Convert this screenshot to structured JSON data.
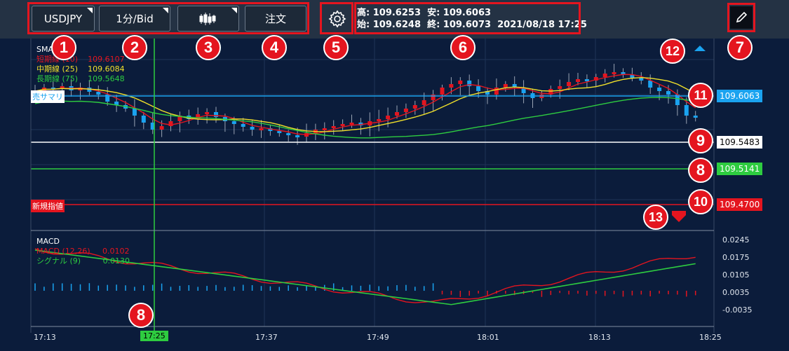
{
  "toolbar": {
    "symbol": "USDJPY",
    "timeframe": "1分/Bid",
    "chart_type_icon": "candlestick-icon",
    "order_label": "注文",
    "settings_icon": "gear-icon",
    "draw_icon": "pencil-icon"
  },
  "ohlc": {
    "high_label": "高:",
    "high": "109.6253",
    "low_label": "安:",
    "low": "109.6063",
    "open_label": "始:",
    "open": "109.6248",
    "close_label": "終:",
    "close": "109.6073",
    "datetime": "2021/08/18 17:25"
  },
  "sma": {
    "title": "SMA",
    "short_label": "短期線 (10)",
    "short_value": "109.6107",
    "mid_label": "中期線 (25)",
    "mid_value": "109.6084",
    "long_label": "長期線 (75)",
    "long_value": "109.5648"
  },
  "lines": {
    "sell_summary": "売サマリ",
    "sell_price": "109.6063",
    "cross_price": "109.5483",
    "green_price": "109.5141",
    "new_limit": "新規指値",
    "limit_price": "109.4700"
  },
  "macd": {
    "title": "MACD",
    "macd_label": "MACD (12,26)",
    "macd_value": "0.0102",
    "signal_label": "シグナル (9)",
    "signal_value": "0.0130",
    "axis": [
      "0.0245",
      "0.0175",
      "0.0105",
      "0.0035",
      "-0.0035"
    ]
  },
  "time_axis": [
    "17:13",
    "17:25",
    "17:37",
    "17:49",
    "18:01",
    "18:13",
    "18:25"
  ],
  "badges": [
    "1",
    "2",
    "3",
    "4",
    "5",
    "6",
    "7",
    "8",
    "9",
    "10",
    "11",
    "12",
    "13",
    "8"
  ],
  "colors": {
    "up": "#e4151f",
    "down": "#1aa3f0",
    "short": "#e4151f",
    "mid": "#f0e02a",
    "long": "#2ecc40"
  }
}
